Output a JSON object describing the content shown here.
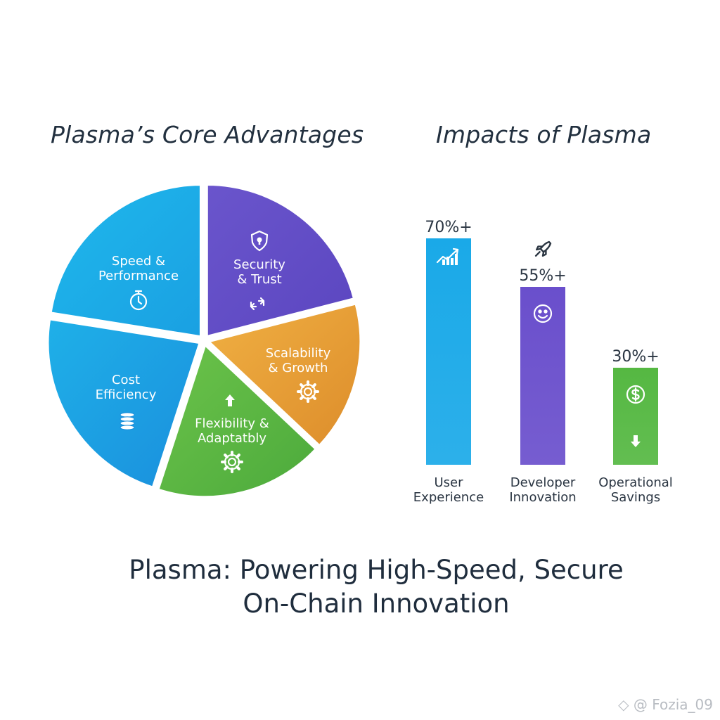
{
  "chart_data": [
    {
      "type": "pie",
      "title": "Plasma’s Core Advantages",
      "slices": [
        {
          "label": [
            "Security",
            "& Trust"
          ],
          "value": 21,
          "color": "#6a55cc",
          "color_dark": "#5b46c0",
          "icon": "shield-lock-icon"
        },
        {
          "label": [
            "Scalability",
            "& Growth"
          ],
          "value": 16,
          "color": "#f0b043",
          "color_dark": "#dd8d2b",
          "icon": "gear-icon"
        },
        {
          "label": [
            "Flexibility &",
            "Adaptatbly"
          ],
          "value": 18,
          "color": "#6cc34a",
          "color_dark": "#4caa3c",
          "icon": "gear-icon"
        },
        {
          "label": [
            "Cost",
            "Efficiency"
          ],
          "value": 22.5,
          "color": "#1fb0e8",
          "color_dark": "#1a8fdd",
          "icon": "coin-stack-icon"
        },
        {
          "label": [
            "Speed &",
            "Performance"
          ],
          "value": 22.5,
          "color": "#1fb8ec",
          "color_dark": "#1aa0e2",
          "icon": "stopwatch-icon"
        }
      ]
    },
    {
      "type": "bar",
      "title": "Impacts of Plasma",
      "categories": [
        [
          "User",
          "Experience"
        ],
        [
          "Developer",
          "Innovation"
        ],
        [
          "Operational",
          "Savings"
        ]
      ],
      "values": [
        70,
        55,
        30
      ],
      "value_labels": [
        "70%+",
        "55%+",
        "30%+"
      ],
      "colors": [
        "#1aa9e8",
        "#6a4fcc",
        "#55b842"
      ],
      "icons": [
        "trend-chart-icon",
        "smiley-icon",
        "dollar-coin-icon"
      ],
      "ylim": [
        0,
        70
      ]
    }
  ],
  "headline": [
    "Plasma: Powering High-Speed, Secure",
    "On-Chain Innovation"
  ],
  "watermark": "@ Fozia_09"
}
